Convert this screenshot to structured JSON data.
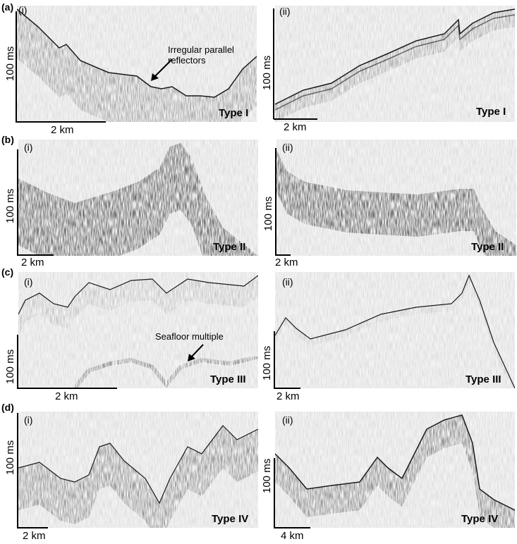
{
  "rows": [
    {
      "label": "(a)",
      "panels": [
        {
          "id": "i",
          "label": "(i)",
          "vscale": "100 ms",
          "hscale": "2 km",
          "type": "Type I"
        },
        {
          "id": "ii",
          "label": "(ii)",
          "vscale": "100 ms",
          "hscale": "2 km",
          "type": "Type I"
        }
      ]
    },
    {
      "label": "(b)",
      "panels": [
        {
          "id": "i",
          "label": "(i)",
          "vscale": "100 ms",
          "hscale": "2 km",
          "type": "Type II"
        },
        {
          "id": "ii",
          "label": "(ii)",
          "vscale": "100 ms",
          "hscale": "2 km",
          "type": "Type II"
        }
      ]
    },
    {
      "label": "(c)",
      "panels": [
        {
          "id": "i",
          "label": "(i)",
          "vscale": "100 ms",
          "hscale": "2 km",
          "type": "Type III"
        },
        {
          "id": "ii",
          "label": "(ii)",
          "vscale": "100 ms",
          "hscale": "2 km",
          "type": "Type III"
        }
      ]
    },
    {
      "label": "(d)",
      "panels": [
        {
          "id": "i",
          "label": "(i)",
          "vscale": "100 ms",
          "hscale": "2 km",
          "type": "Type IV"
        },
        {
          "id": "ii",
          "label": "(ii)",
          "vscale": "100 ms",
          "hscale": "4 km",
          "type": "Type IV"
        }
      ]
    }
  ],
  "annotations": {
    "reflectors_line1": "Irregular parallel",
    "reflectors_line2": "reflectors",
    "multiple": "Seafloor multiple"
  },
  "colors": {
    "background": "#f4f4f4",
    "reflector": "#1a1a1a"
  }
}
